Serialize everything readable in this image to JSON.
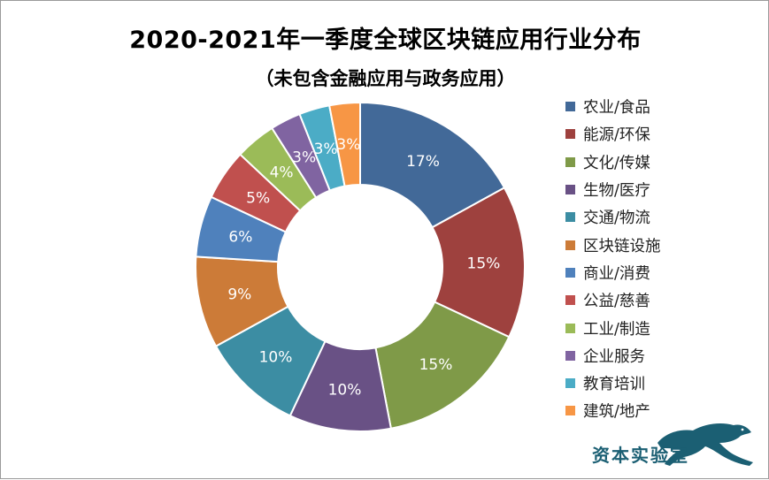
{
  "chart_data": {
    "type": "pie",
    "title": "2020-2021年一季度全球区块链应用行业分布",
    "subtitle": "（未包含金融应用与政务应用）",
    "legend_position": "right",
    "series": [
      {
        "name": "农业/食品",
        "value": 17,
        "label": "17%",
        "color": "#426998"
      },
      {
        "name": "能源/环保",
        "value": 15,
        "label": "15%",
        "color": "#9e413e"
      },
      {
        "name": "文化/传媒",
        "value": 15,
        "label": "15%",
        "color": "#7f9a48"
      },
      {
        "name": "生物/医疗",
        "value": 10,
        "label": "10%",
        "color": "#695185"
      },
      {
        "name": "交通/物流",
        "value": 10,
        "label": "10%",
        "color": "#3c8da3"
      },
      {
        "name": "区块链设施",
        "value": 9,
        "label": "9%",
        "color": "#cc7b38"
      },
      {
        "name": "商业/消费",
        "value": 6,
        "label": "6%",
        "color": "#4f81bc"
      },
      {
        "name": "公益/慈善",
        "value": 5,
        "label": "5%",
        "color": "#c0504e"
      },
      {
        "name": "工业/制造",
        "value": 4,
        "label": "4%",
        "color": "#9bbb58"
      },
      {
        "name": "企业服务",
        "value": 3,
        "label": "3%",
        "color": "#8064a1"
      },
      {
        "name": "教育培训",
        "value": 3,
        "label": "3%",
        "color": "#4bacc6"
      },
      {
        "name": "建筑/地产",
        "value": 3,
        "label": "3%",
        "color": "#f79645"
      }
    ]
  },
  "watermark": {
    "text": "资本实验室",
    "logo_icon": "panther-icon",
    "color": "#1b5f73"
  }
}
